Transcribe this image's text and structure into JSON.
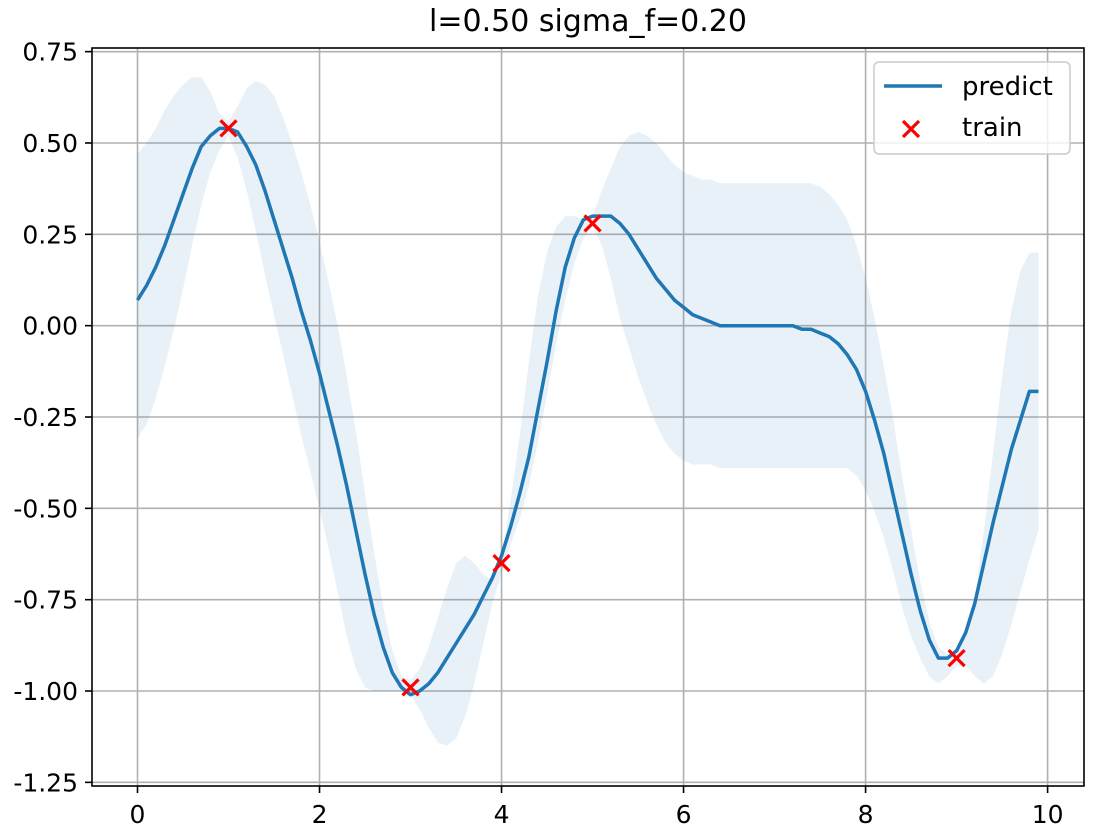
{
  "chart_data": {
    "type": "line",
    "title": "l=0.50 sigma_f=0.20",
    "xlabel": "",
    "ylabel": "",
    "xlim": [
      -0.5,
      10.4
    ],
    "ylim": [
      -1.26,
      0.76
    ],
    "grid": true,
    "legend_position": "upper right",
    "legend": [
      "predict",
      "train"
    ],
    "x_ticks": [
      0,
      2,
      4,
      6,
      8,
      10
    ],
    "x_tick_labels": [
      "0",
      "2",
      "4",
      "6",
      "8",
      "10"
    ],
    "y_ticks": [
      0.75,
      0.5,
      0.25,
      0.0,
      -0.25,
      -0.5,
      -0.75,
      -1.0,
      -1.25
    ],
    "y_tick_labels": [
      "0.75",
      "0.50",
      "0.25",
      "0.00",
      "-0.25",
      "-0.50",
      "-0.75",
      "-1.00",
      "-1.25"
    ],
    "colors": {
      "predict": "#1f77b4",
      "band": "#1f77b4",
      "train": "#ff0000",
      "grid": "#b0b0b0"
    },
    "series": [
      {
        "name": "predict",
        "kind": "line",
        "x": [
          0,
          0.1,
          0.2,
          0.3,
          0.4,
          0.5,
          0.6,
          0.7,
          0.8,
          0.9,
          1.0,
          1.1,
          1.2,
          1.3,
          1.4,
          1.5,
          1.6,
          1.7,
          1.8,
          1.9,
          2.0,
          2.1,
          2.2,
          2.3,
          2.4,
          2.5,
          2.6,
          2.7,
          2.8,
          2.9,
          3.0,
          3.1,
          3.2,
          3.3,
          3.4,
          3.5,
          3.6,
          3.7,
          3.8,
          3.9,
          4.0,
          4.1,
          4.2,
          4.3,
          4.4,
          4.5,
          4.6,
          4.7,
          4.8,
          4.9,
          5.0,
          5.1,
          5.2,
          5.3,
          5.4,
          5.5,
          5.6,
          5.7,
          5.8,
          5.9,
          6.0,
          6.1,
          6.2,
          6.3,
          6.4,
          6.5,
          6.6,
          6.7,
          6.8,
          6.9,
          7.0,
          7.1,
          7.2,
          7.3,
          7.4,
          7.5,
          7.6,
          7.7,
          7.8,
          7.9,
          8.0,
          8.1,
          8.2,
          8.3,
          8.4,
          8.5,
          8.6,
          8.7,
          8.8,
          8.9,
          9.0,
          9.1,
          9.2,
          9.3,
          9.4,
          9.5,
          9.6,
          9.7,
          9.8,
          9.9
        ],
        "y": [
          0.07,
          0.11,
          0.16,
          0.22,
          0.29,
          0.36,
          0.43,
          0.49,
          0.52,
          0.54,
          0.54,
          0.53,
          0.49,
          0.44,
          0.37,
          0.29,
          0.21,
          0.13,
          0.04,
          -0.04,
          -0.13,
          -0.23,
          -0.33,
          -0.44,
          -0.56,
          -0.68,
          -0.79,
          -0.88,
          -0.95,
          -0.99,
          -1.01,
          -1.0,
          -0.98,
          -0.95,
          -0.91,
          -0.87,
          -0.83,
          -0.79,
          -0.74,
          -0.69,
          -0.63,
          -0.55,
          -0.46,
          -0.36,
          -0.23,
          -0.1,
          0.04,
          0.16,
          0.24,
          0.29,
          0.3,
          0.3,
          0.3,
          0.28,
          0.25,
          0.21,
          0.17,
          0.13,
          0.1,
          0.07,
          0.05,
          0.03,
          0.02,
          0.01,
          0.0,
          0.0,
          0.0,
          0.0,
          0.0,
          0.0,
          0.0,
          0.0,
          0.0,
          -0.01,
          -0.01,
          -0.02,
          -0.03,
          -0.05,
          -0.08,
          -0.12,
          -0.18,
          -0.26,
          -0.35,
          -0.46,
          -0.57,
          -0.68,
          -0.78,
          -0.86,
          -0.91,
          -0.91,
          -0.89,
          -0.84,
          -0.76,
          -0.65,
          -0.54,
          -0.44,
          -0.34,
          -0.26,
          -0.18,
          -0.18
        ]
      },
      {
        "name": "confidence band",
        "kind": "band",
        "x": [
          0,
          0.1,
          0.2,
          0.3,
          0.4,
          0.5,
          0.6,
          0.7,
          0.8,
          0.9,
          1.0,
          1.1,
          1.2,
          1.3,
          1.4,
          1.5,
          1.6,
          1.7,
          1.8,
          1.9,
          2.0,
          2.1,
          2.2,
          2.3,
          2.4,
          2.5,
          2.6,
          2.7,
          2.8,
          2.9,
          3.0,
          3.1,
          3.2,
          3.3,
          3.4,
          3.5,
          3.6,
          3.7,
          3.8,
          3.9,
          4.0,
          4.1,
          4.2,
          4.3,
          4.4,
          4.5,
          4.6,
          4.7,
          4.8,
          4.9,
          5.0,
          5.1,
          5.2,
          5.3,
          5.4,
          5.5,
          5.6,
          5.7,
          5.8,
          5.9,
          6.0,
          6.1,
          6.2,
          6.3,
          6.4,
          6.5,
          6.6,
          6.7,
          6.8,
          6.9,
          7.0,
          7.1,
          7.2,
          7.3,
          7.4,
          7.5,
          7.6,
          7.7,
          7.8,
          7.9,
          8.0,
          8.1,
          8.2,
          8.3,
          8.4,
          8.5,
          8.6,
          8.7,
          8.8,
          8.9,
          9.0,
          9.1,
          9.2,
          9.3,
          9.4,
          9.5,
          9.6,
          9.7,
          9.8,
          9.9
        ],
        "upper": [
          0.47,
          0.5,
          0.54,
          0.59,
          0.63,
          0.66,
          0.68,
          0.68,
          0.64,
          0.58,
          0.56,
          0.6,
          0.65,
          0.67,
          0.66,
          0.63,
          0.57,
          0.5,
          0.42,
          0.33,
          0.23,
          0.12,
          0.0,
          -0.14,
          -0.29,
          -0.46,
          -0.62,
          -0.77,
          -0.89,
          -0.96,
          -0.97,
          -0.94,
          -0.88,
          -0.8,
          -0.72,
          -0.65,
          -0.63,
          -0.65,
          -0.68,
          -0.7,
          -0.63,
          -0.48,
          -0.3,
          -0.1,
          0.08,
          0.2,
          0.27,
          0.3,
          0.3,
          0.29,
          0.3,
          0.37,
          0.43,
          0.49,
          0.52,
          0.53,
          0.52,
          0.5,
          0.47,
          0.44,
          0.42,
          0.41,
          0.4,
          0.4,
          0.39,
          0.39,
          0.39,
          0.39,
          0.39,
          0.39,
          0.39,
          0.39,
          0.39,
          0.39,
          0.39,
          0.38,
          0.36,
          0.33,
          0.29,
          0.22,
          0.13,
          0.02,
          -0.11,
          -0.25,
          -0.41,
          -0.56,
          -0.7,
          -0.81,
          -0.88,
          -0.9,
          -0.89,
          -0.85,
          -0.74,
          -0.56,
          -0.35,
          -0.14,
          0.04,
          0.15,
          0.2,
          0.2
        ],
        "lower": [
          -0.31,
          -0.27,
          -0.2,
          -0.11,
          -0.01,
          0.1,
          0.22,
          0.33,
          0.42,
          0.48,
          0.52,
          0.46,
          0.37,
          0.26,
          0.14,
          0.03,
          -0.08,
          -0.19,
          -0.3,
          -0.4,
          -0.5,
          -0.61,
          -0.73,
          -0.85,
          -0.94,
          -0.99,
          -1.0,
          -1.0,
          -1.0,
          -1.0,
          -1.01,
          -1.05,
          -1.1,
          -1.14,
          -1.15,
          -1.13,
          -1.07,
          -0.98,
          -0.87,
          -0.76,
          -0.68,
          -0.6,
          -0.53,
          -0.44,
          -0.32,
          -0.19,
          -0.05,
          0.07,
          0.17,
          0.24,
          0.27,
          0.22,
          0.13,
          0.02,
          -0.06,
          -0.14,
          -0.21,
          -0.27,
          -0.32,
          -0.35,
          -0.37,
          -0.38,
          -0.38,
          -0.38,
          -0.39,
          -0.39,
          -0.39,
          -0.39,
          -0.39,
          -0.39,
          -0.39,
          -0.39,
          -0.39,
          -0.39,
          -0.39,
          -0.39,
          -0.39,
          -0.39,
          -0.39,
          -0.41,
          -0.45,
          -0.51,
          -0.58,
          -0.67,
          -0.77,
          -0.85,
          -0.91,
          -0.96,
          -0.98,
          -0.96,
          -0.93,
          -0.93,
          -0.96,
          -0.98,
          -0.96,
          -0.9,
          -0.82,
          -0.73,
          -0.64,
          -0.56
        ]
      },
      {
        "name": "train",
        "kind": "scatter",
        "marker": "x",
        "x": [
          1.0,
          3.0,
          4.0,
          5.0,
          9.0
        ],
        "y": [
          0.54,
          -0.99,
          -0.65,
          0.28,
          -0.91
        ]
      }
    ]
  }
}
